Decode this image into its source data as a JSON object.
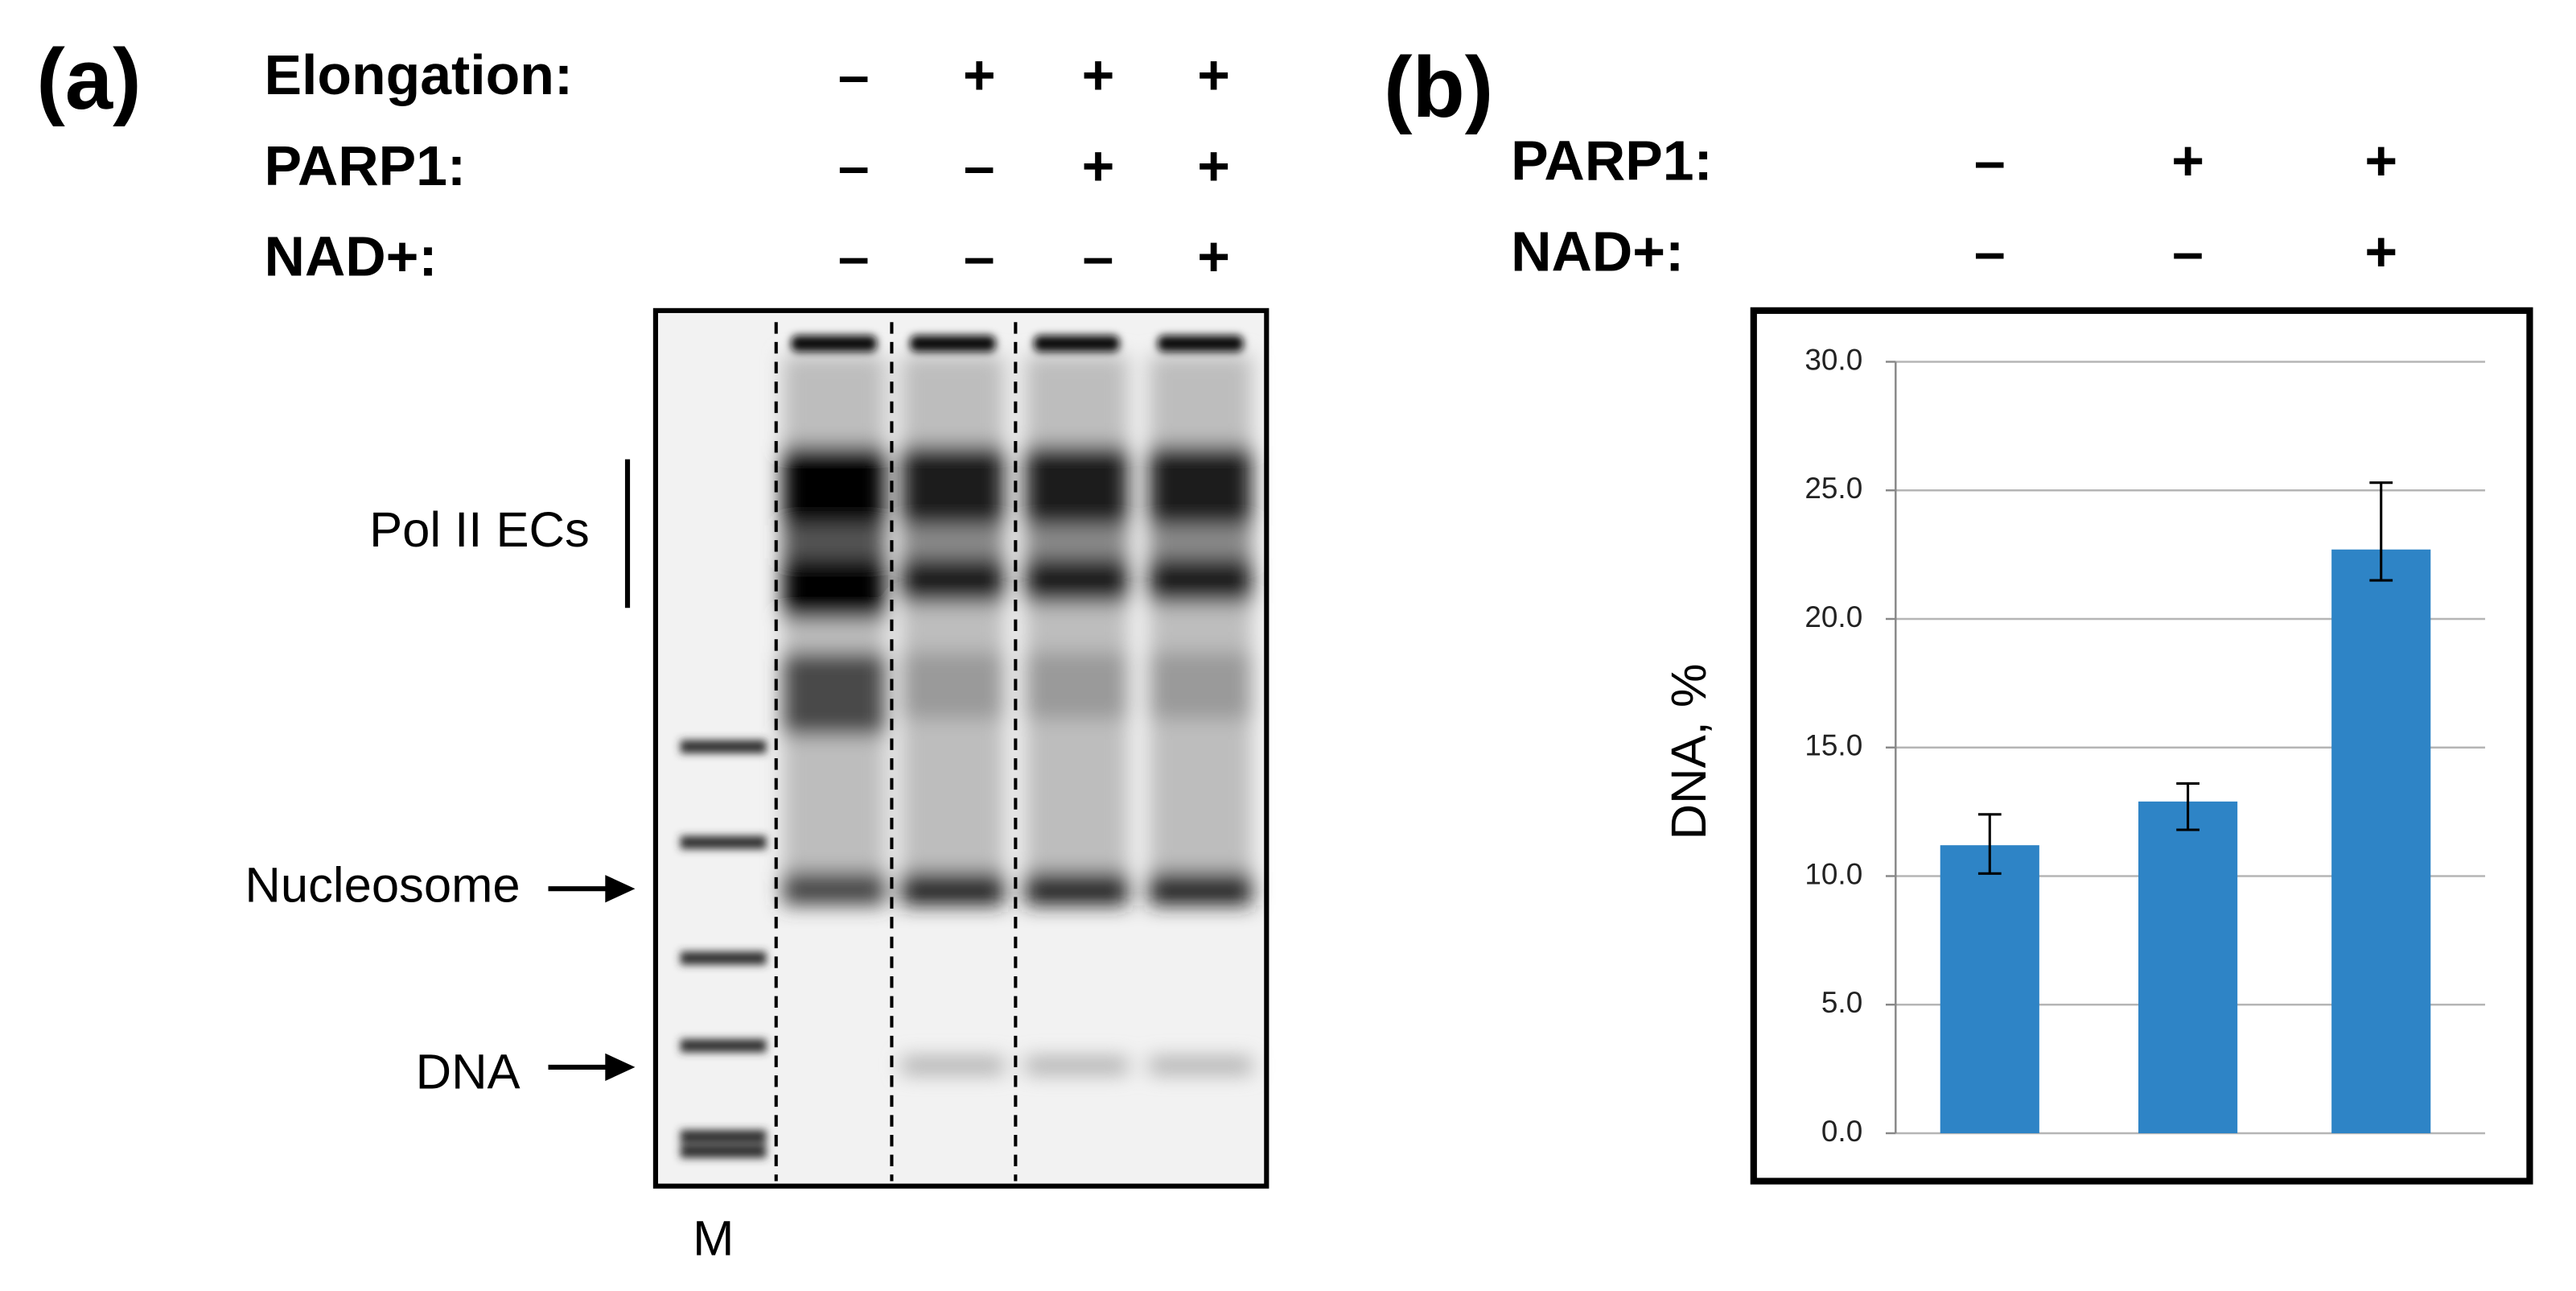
{
  "panel_a": {
    "label": "(a)",
    "rows": [
      {
        "name": "Elongation:",
        "signs": [
          "–",
          "+",
          "+",
          "+"
        ]
      },
      {
        "name": "PARP1:",
        "signs": [
          "–",
          "–",
          "+",
          "+"
        ]
      },
      {
        "name": "NAD+:",
        "signs": [
          "–",
          "–",
          "–",
          "+"
        ]
      }
    ],
    "annotations": {
      "pol_ii": "Pol II ECs",
      "nucleosome": "Nucleosome",
      "dna": "DNA",
      "marker": "M"
    }
  },
  "chart_data": {
    "type": "bar",
    "label": "(b)",
    "conditions": [
      {
        "name": "PARP1:",
        "signs": [
          "–",
          "+",
          "+"
        ]
      },
      {
        "name": "NAD+:",
        "signs": [
          "–",
          "–",
          "+"
        ]
      }
    ],
    "ylabel": "DNA, %",
    "values": [
      11.2,
      12.9,
      22.7
    ],
    "error_lower": [
      10.1,
      11.8,
      21.5
    ],
    "error_upper": [
      12.4,
      13.6,
      25.3
    ],
    "color": "#2e84c6",
    "ylim": [
      0,
      30
    ],
    "yticks": [
      {
        "value": 0,
        "label": "0.0"
      },
      {
        "value": 5,
        "label": "5.0"
      },
      {
        "value": 10,
        "label": "10.0"
      },
      {
        "value": 15,
        "label": "15.0"
      },
      {
        "value": 20,
        "label": "20.0"
      },
      {
        "value": 25,
        "label": "25.0"
      },
      {
        "value": 30,
        "label": "30.0"
      }
    ],
    "grid": true
  }
}
